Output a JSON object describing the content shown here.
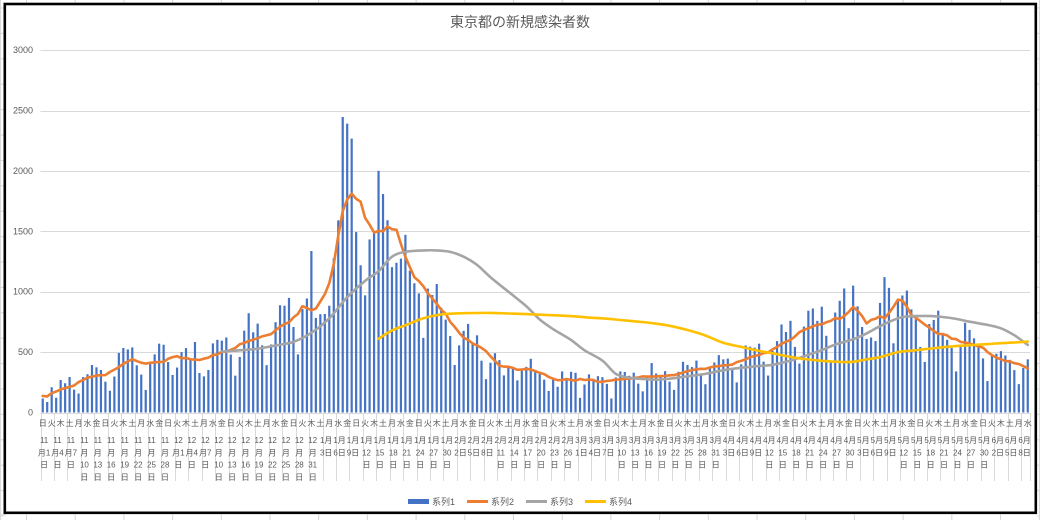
{
  "title": "東京都の新規感染者数",
  "legend": {
    "items": [
      {
        "label": "系列1",
        "color": "#4472C4",
        "swatch": "bar"
      },
      {
        "label": "系列2",
        "color": "#ED7D31",
        "swatch": "line"
      },
      {
        "label": "系列3",
        "color": "#A5A5A5",
        "swatch": "line"
      },
      {
        "label": "系列4",
        "color": "#FFC000",
        "swatch": "line"
      }
    ]
  },
  "chart_data": {
    "type": "bar",
    "subtype": "combo bar+line, daily categories from 11月1日 to 6月9日",
    "title": "東京都の新規感染者数",
    "grid": true,
    "legend_position": "bottom",
    "y_axis": {
      "min": 0,
      "max": 3000,
      "step": 500,
      "ticks": [
        0,
        500,
        1000,
        1500,
        2000,
        2500,
        3000
      ]
    },
    "x_axis": {
      "dow_cycle": [
        "日",
        "月",
        "火",
        "水",
        "木",
        "金",
        "土"
      ],
      "first_day_dow_index": 0,
      "dow_label_interval_days": 2,
      "date_label_interval_days": 3,
      "month_char": "月",
      "day_char": "日",
      "date_labels": [
        [
          11,
          1
        ],
        [
          11,
          4
        ],
        [
          11,
          7
        ],
        [
          11,
          10
        ],
        [
          11,
          13
        ],
        [
          11,
          16
        ],
        [
          11,
          19
        ],
        [
          11,
          22
        ],
        [
          11,
          25
        ],
        [
          11,
          28
        ],
        [
          12,
          1
        ],
        [
          12,
          4
        ],
        [
          12,
          7
        ],
        [
          12,
          10
        ],
        [
          12,
          13
        ],
        [
          12,
          16
        ],
        [
          12,
          19
        ],
        [
          12,
          22
        ],
        [
          12,
          25
        ],
        [
          12,
          28
        ],
        [
          12,
          31
        ],
        [
          1,
          3
        ],
        [
          1,
          6
        ],
        [
          1,
          9
        ],
        [
          1,
          12
        ],
        [
          1,
          15
        ],
        [
          1,
          18
        ],
        [
          1,
          21
        ],
        [
          1,
          24
        ],
        [
          1,
          27
        ],
        [
          1,
          30
        ],
        [
          2,
          2
        ],
        [
          2,
          5
        ],
        [
          2,
          8
        ],
        [
          2,
          11
        ],
        [
          2,
          14
        ],
        [
          2,
          17
        ],
        [
          2,
          20
        ],
        [
          2,
          23
        ],
        [
          2,
          26
        ],
        [
          3,
          1
        ],
        [
          3,
          4
        ],
        [
          3,
          7
        ],
        [
          3,
          10
        ],
        [
          3,
          13
        ],
        [
          3,
          16
        ],
        [
          3,
          19
        ],
        [
          3,
          22
        ],
        [
          3,
          25
        ],
        [
          3,
          28
        ],
        [
          3,
          31
        ],
        [
          4,
          3
        ],
        [
          4,
          6
        ],
        [
          4,
          9
        ],
        [
          4,
          12
        ],
        [
          4,
          15
        ],
        [
          4,
          18
        ],
        [
          4,
          21
        ],
        [
          4,
          24
        ],
        [
          4,
          27
        ],
        [
          4,
          30
        ],
        [
          5,
          3
        ],
        [
          5,
          6
        ],
        [
          5,
          9
        ],
        [
          5,
          12
        ],
        [
          5,
          15
        ],
        [
          5,
          18
        ],
        [
          5,
          21
        ],
        [
          5,
          24
        ],
        [
          5,
          27
        ],
        [
          5,
          30
        ],
        [
          6,
          2
        ],
        [
          6,
          5
        ],
        [
          6,
          8
        ]
      ]
    },
    "series": [
      {
        "name": "系列1",
        "type": "bar",
        "color": "#4472C4",
        "values": [
          116,
          87,
          209,
          122,
          269,
          242,
          294,
          189,
          157,
          293,
          317,
          393,
          374,
          352,
          255,
          180,
          298,
          493,
          534,
          522,
          539,
          391,
          314,
          186,
          401,
          481,
          570,
          561,
          418,
          311,
          372,
          500,
          533,
          449,
          584,
          327,
          299,
          352,
          572,
          602,
          595,
          621,
          480,
          305,
          460,
          678,
          822,
          664,
          736,
          556,
          392,
          563,
          748,
          888,
          884,
          949,
          708,
          481,
          856,
          944,
          1337,
          783,
          814,
          816,
          884,
          1278,
          1591,
          2447,
          2392,
          2268,
          1494,
          1219,
          970,
          1433,
          1502,
          2001,
          1809,
          1592,
          1204,
          1240,
          1274,
          1471,
          1175,
          1070,
          986,
          618,
          1026,
          973,
          1064,
          868,
          769,
          633,
          393,
          556,
          676,
          734,
          577,
          639,
          429,
          276,
          412,
          491,
          434,
          307,
          369,
          371,
          266,
          350,
          378,
          445,
          353,
          327,
          272,
          178,
          275,
          213,
          340,
          270,
          337,
          329,
          121,
          232,
          316,
          279,
          301,
          293,
          237,
          116,
          290,
          340,
          335,
          304,
          330,
          239,
          175,
          300,
          409,
          323,
          303,
          342,
          256,
          187,
          337,
          420,
          394,
          376,
          430,
          313,
          234,
          364,
          414,
          475,
          440,
          446,
          355,
          249,
          399,
          555,
          545,
          537,
          570,
          421,
          306,
          510,
          591,
          729,
          667,
          759,
          543,
          405,
          711,
          843,
          861,
          759,
          876,
          635,
          425,
          828,
          925,
          1027,
          698,
          1050,
          879,
          708,
          609,
          621,
          591,
          907,
          1121,
          1032,
          573,
          925,
          969,
          1010,
          854,
          772,
          542,
          419,
          732,
          766,
          843,
          649,
          602,
          535,
          340,
          542,
          743,
          684,
          614,
          539,
          448,
          260,
          471,
          487,
          508,
          472,
          436,
          351,
          235,
          369,
          440
        ]
      },
      {
        "name": "系列2",
        "type": "line",
        "color": "#ED7D31",
        "derivation": "7-day moving average of 系列1"
      },
      {
        "name": "系列3",
        "type": "line",
        "color": "#A5A5A5",
        "points": [
          [
            40,
            505
          ],
          [
            44,
            515
          ],
          [
            48,
            528
          ],
          [
            52,
            555
          ],
          [
            56,
            585
          ],
          [
            60,
            660
          ],
          [
            64,
            780
          ],
          [
            68,
            955
          ],
          [
            72,
            1090
          ],
          [
            75,
            1170
          ],
          [
            78,
            1290
          ],
          [
            81,
            1330
          ],
          [
            85,
            1342
          ],
          [
            88,
            1342
          ],
          [
            91,
            1330
          ],
          [
            94,
            1290
          ],
          [
            97,
            1222
          ],
          [
            100,
            1120
          ],
          [
            104,
            1000
          ],
          [
            108,
            880
          ],
          [
            111,
            770
          ],
          [
            114,
            690
          ],
          [
            118,
            600
          ],
          [
            121,
            515
          ],
          [
            125,
            430
          ],
          [
            128,
            320
          ],
          [
            131,
            288
          ],
          [
            134,
            277
          ],
          [
            137,
            272
          ],
          [
            140,
            280
          ],
          [
            144,
            300
          ],
          [
            148,
            320
          ],
          [
            152,
            350
          ],
          [
            156,
            370
          ],
          [
            160,
            385
          ],
          [
            163,
            395
          ],
          [
            167,
            430
          ],
          [
            170,
            465
          ],
          [
            174,
            517
          ],
          [
            177,
            562
          ],
          [
            181,
            607
          ],
          [
            184,
            655
          ],
          [
            187,
            715
          ],
          [
            191,
            780
          ],
          [
            193,
            795
          ],
          [
            197,
            800
          ],
          [
            200,
            795
          ],
          [
            204,
            775
          ],
          [
            207,
            752
          ],
          [
            211,
            725
          ],
          [
            214,
            697
          ],
          [
            217,
            640
          ],
          [
            220,
            560
          ]
        ]
      },
      {
        "name": "系列4",
        "type": "line",
        "color": "#FFC000",
        "points": [
          [
            75,
            610
          ],
          [
            78,
            680
          ],
          [
            81,
            722
          ],
          [
            85,
            780
          ],
          [
            89,
            812
          ],
          [
            94,
            822
          ],
          [
            100,
            825
          ],
          [
            104,
            820
          ],
          [
            108,
            815
          ],
          [
            111,
            810
          ],
          [
            115,
            804
          ],
          [
            118,
            798
          ],
          [
            122,
            786
          ],
          [
            126,
            777
          ],
          [
            129,
            766
          ],
          [
            133,
            752
          ],
          [
            136,
            740
          ],
          [
            140,
            718
          ],
          [
            144,
            683
          ],
          [
            148,
            638
          ],
          [
            152,
            577
          ],
          [
            156,
            543
          ],
          [
            160,
            510
          ],
          [
            163,
            490
          ],
          [
            167,
            460
          ],
          [
            170,
            443
          ],
          [
            174,
            428
          ],
          [
            178,
            419
          ],
          [
            181,
            420
          ],
          [
            184,
            440
          ],
          [
            187,
            458
          ],
          [
            191,
            500
          ],
          [
            194,
            512
          ],
          [
            197,
            524
          ],
          [
            202,
            544
          ],
          [
            207,
            557
          ],
          [
            211,
            566
          ],
          [
            214,
            574
          ],
          [
            217,
            580
          ],
          [
            220,
            587
          ]
        ]
      }
    ]
  },
  "colors": {
    "grid": "#D9D9D9",
    "axis_text": "#595959",
    "title_text": "#595959",
    "chart_border": "#000000",
    "sheet_grid": "#D6D6D6"
  }
}
